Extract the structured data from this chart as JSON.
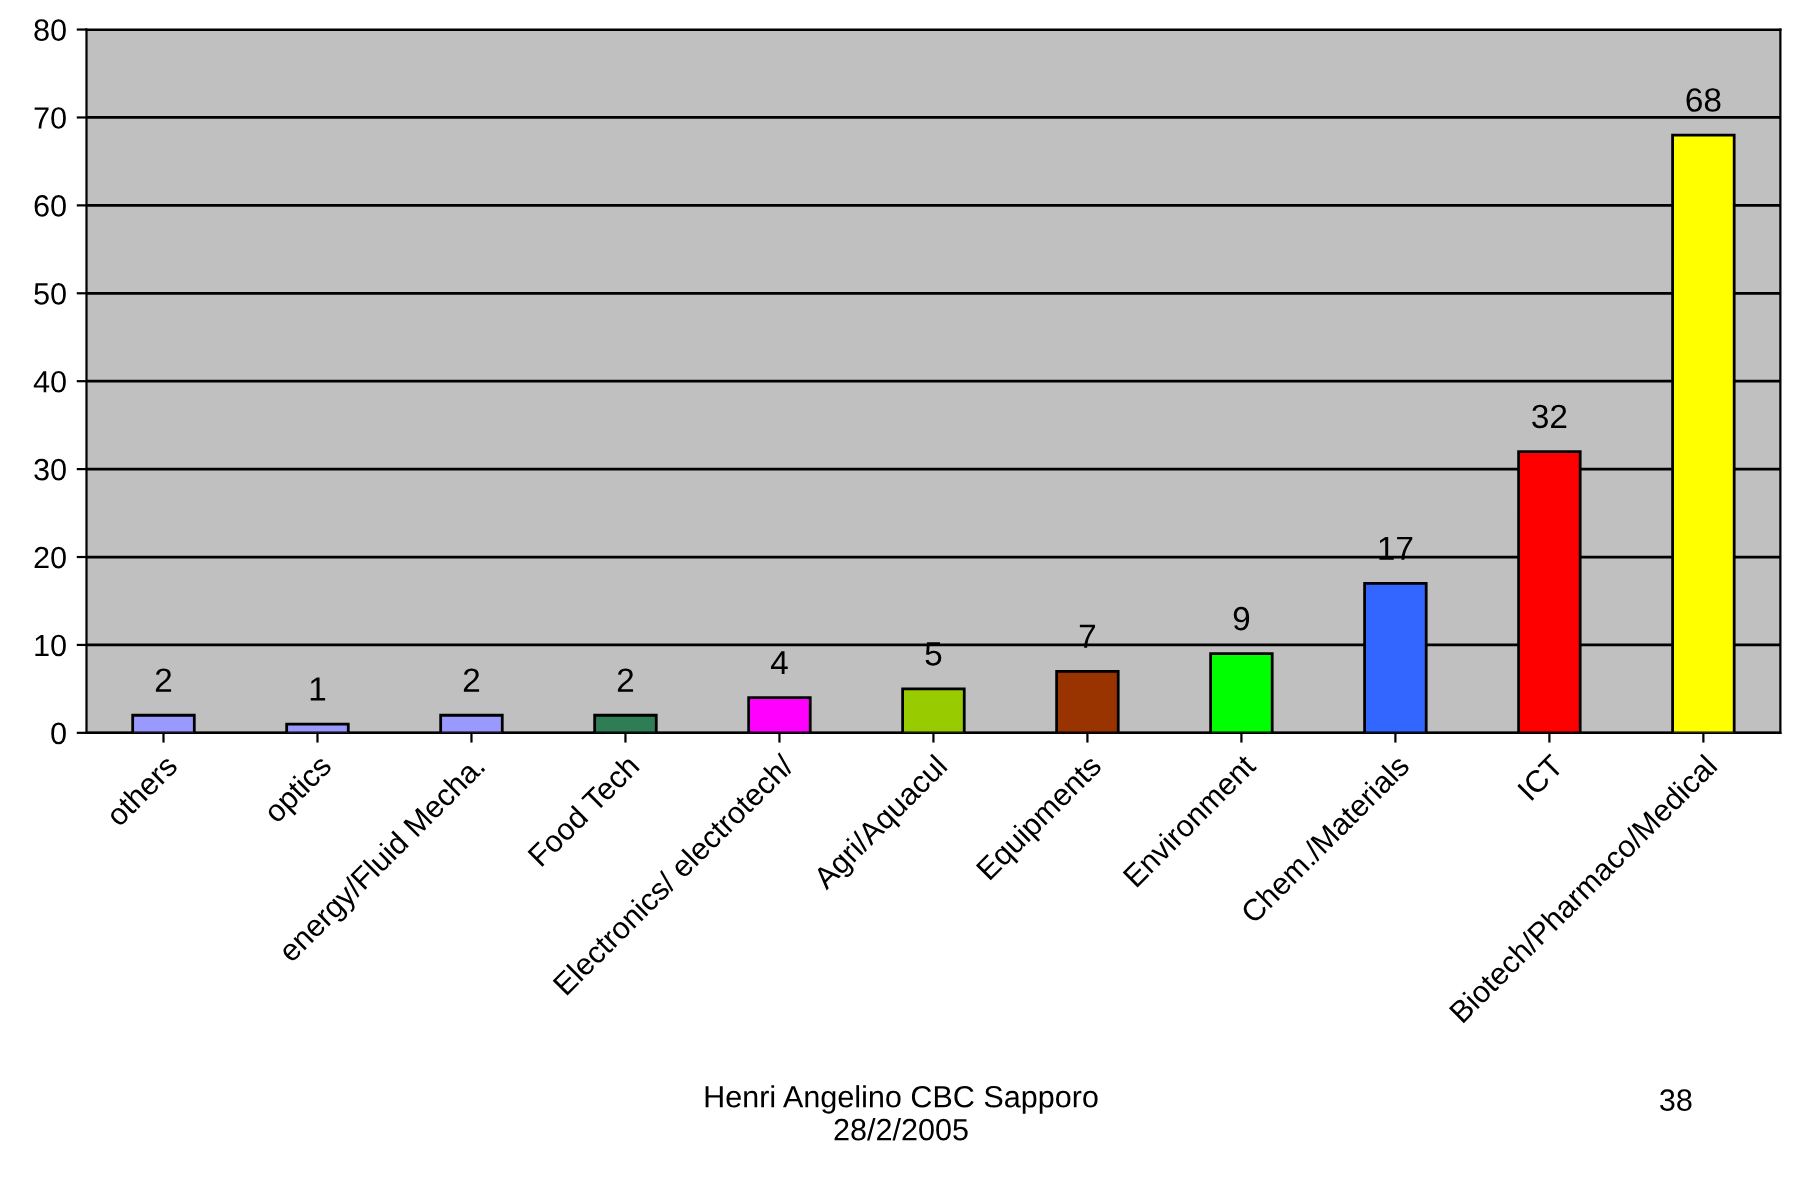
{
  "chart_data": {
    "type": "bar",
    "categories": [
      "others",
      "optics",
      "energy/Fluid Mecha.",
      "Food Tech",
      "Electronics/ electrotech/",
      "Agri/Aquacul",
      "Equipments",
      "Environment",
      "Chem./Materials",
      "ICT",
      "Biotech/Pharmaco/Medical"
    ],
    "values": [
      2,
      1,
      2,
      2,
      4,
      5,
      7,
      9,
      17,
      32,
      68
    ],
    "colors": [
      "#9999ff",
      "#9999ff",
      "#9999ff",
      "#2e7d55",
      "#ff00ff",
      "#99cc00",
      "#993300",
      "#00ff00",
      "#3366ff",
      "#ff0000",
      "#ffff00"
    ],
    "ylim": [
      0,
      80
    ],
    "yticks": [
      0,
      10,
      20,
      30,
      40,
      50,
      60,
      70,
      80
    ],
    "grid": "y",
    "data_labels": true,
    "annotations": [
      "Henri Angelino CBC Sapporo\n28/2/2005",
      "38"
    ]
  }
}
